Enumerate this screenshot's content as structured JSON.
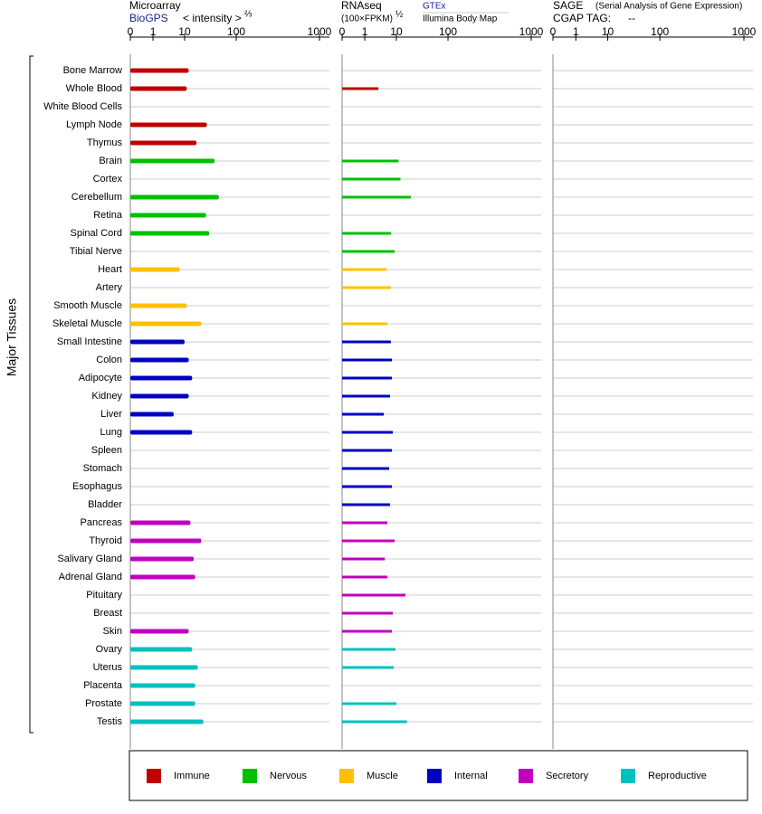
{
  "chart_data": {
    "type": "bar",
    "ylabel": "Major Tissues",
    "categories": [
      "Bone Marrow",
      "Whole Blood",
      "White Blood Cells",
      "Lymph Node",
      "Thymus",
      "Brain",
      "Cortex",
      "Cerebellum",
      "Retina",
      "Spinal Cord",
      "Tibial Nerve",
      "Heart",
      "Artery",
      "Smooth Muscle",
      "Skeletal Muscle",
      "Small Intestine",
      "Colon",
      "Adipocyte",
      "Kidney",
      "Liver",
      "Lung",
      "Spleen",
      "Stomach",
      "Esophagus",
      "Bladder",
      "Pancreas",
      "Thyroid",
      "Salivary Gland",
      "Adrenal Gland",
      "Pituitary",
      "Breast",
      "Skin",
      "Ovary",
      "Uterus",
      "Placenta",
      "Prostate",
      "Testis"
    ],
    "groups": [
      0,
      0,
      0,
      0,
      0,
      1,
      1,
      1,
      1,
      1,
      1,
      2,
      2,
      2,
      2,
      3,
      3,
      3,
      3,
      3,
      3,
      3,
      3,
      3,
      3,
      4,
      4,
      4,
      4,
      4,
      4,
      4,
      5,
      5,
      5,
      5,
      5
    ],
    "legend": [
      {
        "name": "Immune",
        "color": "#c00000"
      },
      {
        "name": "Nervous",
        "color": "#00c000"
      },
      {
        "name": "Muscle",
        "color": "#ffc000"
      },
      {
        "name": "Internal",
        "color": "#0000c0"
      },
      {
        "name": "Secretory",
        "color": "#c000c0"
      },
      {
        "name": "Reproductive",
        "color": "#00c0c0"
      }
    ],
    "panels": [
      {
        "title": "Microarray",
        "source": "BioGPS",
        "unit": "< intensity >",
        "exponent": "⅔",
        "xlim": [
          0,
          1000
        ],
        "xticks": [
          0,
          1,
          10,
          100,
          1000
        ],
        "values": [
          12,
          11,
          null,
          27,
          17,
          38,
          null,
          46,
          26,
          30,
          null,
          7,
          null,
          11,
          21,
          10,
          12,
          14,
          12,
          4.5,
          14,
          null,
          null,
          null,
          null,
          13,
          21,
          15,
          16,
          null,
          null,
          12,
          14,
          18,
          16,
          16,
          23
        ]
      },
      {
        "title": "RNAseq",
        "unit": "(100×FPKM)",
        "exponent": "½",
        "sources": [
          "GTEx",
          "Illumina Body Map"
        ],
        "xlim": [
          0,
          1000
        ],
        "xticks": [
          0,
          1,
          10,
          100,
          1000
        ],
        "values": [
          null,
          2.7,
          null,
          null,
          null,
          11,
          12,
          19,
          null,
          6.7,
          8.8,
          4.9,
          6.7,
          null,
          5.2,
          6.7,
          7.2,
          7.2,
          6.3,
          4,
          7.7,
          7.2,
          5.9,
          7.2,
          6.3,
          5.2,
          8.8,
          4.3,
          5.2,
          15,
          7.7,
          7.2,
          9.4,
          8.2,
          null,
          10,
          16
        ]
      },
      {
        "title": "SAGE",
        "subtitle": "(Serial Analysis of Gene Expression)",
        "tag_label": "CGAP TAG:",
        "tag": "--",
        "xlim": [
          0,
          1000
        ],
        "xticks": [
          0,
          1,
          10,
          100,
          1000
        ],
        "values": [
          null,
          null,
          null,
          null,
          null,
          null,
          null,
          null,
          null,
          null,
          null,
          null,
          null,
          null,
          null,
          null,
          null,
          null,
          null,
          null,
          null,
          null,
          null,
          null,
          null,
          null,
          null,
          null,
          null,
          null,
          null,
          null,
          null,
          null,
          null,
          null,
          null
        ]
      }
    ]
  }
}
